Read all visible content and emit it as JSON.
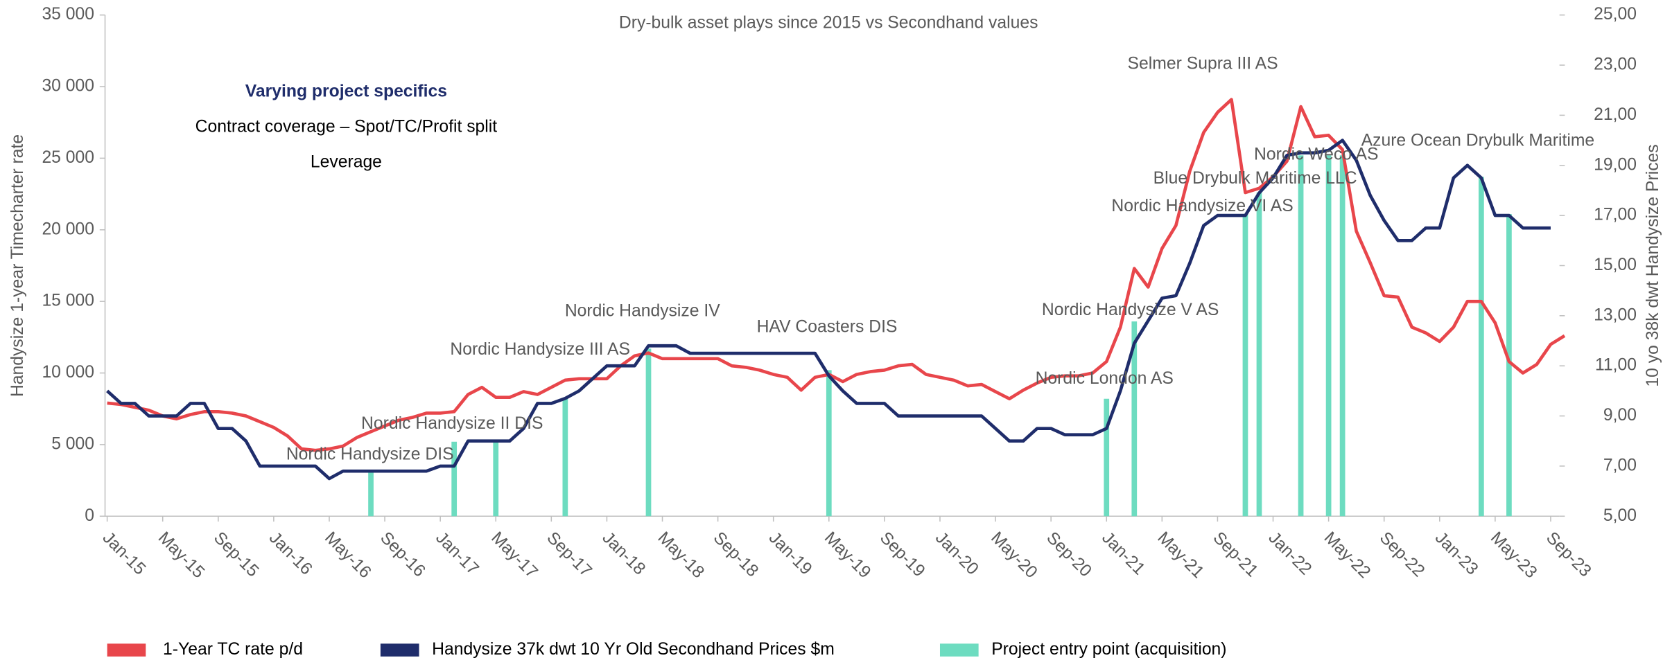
{
  "chart_data": {
    "type": "line",
    "title": "Dry-bulk asset plays since 2015 vs Secondhand values",
    "ylabel": "Handysize 1-year Timecharter rate",
    "y2label": "10 yo 38k dwt Handysize Prices",
    "notes": [
      "Varying project specifics",
      "Contract coverage – Spot/TC/Profit split",
      "Leverage"
    ],
    "annotations": [
      "Selmer Supra III AS",
      "Nordic Weco AS",
      "Azure Ocean Drybulk Maritime",
      "Blue Drybulk Maritime LLC",
      "Nordic Handysize VI AS",
      "Nordic Handysize V AS",
      "Nordic London AS",
      "HAV Coasters DIS",
      "Nordic Handysize IV",
      "Nordic Handysize III AS",
      "Nordic Handysize II DIS",
      "Nordic Handysize DIS"
    ],
    "categories": [
      "Jan-15",
      null,
      null,
      null,
      "May-15",
      null,
      null,
      null,
      "Sep-15",
      null,
      null,
      null,
      "Jan-16",
      null,
      null,
      null,
      "May-16",
      null,
      null,
      null,
      "Sep-16",
      null,
      null,
      null,
      "Jan-17",
      null,
      null,
      null,
      "May-17",
      null,
      null,
      null,
      "Sep-17",
      null,
      null,
      null,
      "Jan-18",
      null,
      null,
      null,
      "May-18",
      null,
      null,
      null,
      "Sep-18",
      null,
      null,
      null,
      "Jan-19",
      null,
      null,
      null,
      "May-19",
      null,
      null,
      null,
      "Sep-19",
      null,
      null,
      null,
      "Jan-20",
      null,
      null,
      null,
      "May-20",
      null,
      null,
      null,
      "Sep-20",
      null,
      null,
      null,
      "Jan-21",
      null,
      null,
      null,
      "May-21",
      null,
      null,
      null,
      "Sep-21",
      null,
      null,
      null,
      "Jan-22",
      null,
      null,
      null,
      "May-22",
      null,
      null,
      null,
      "Sep-22",
      null,
      null,
      null,
      "Jan-23",
      null,
      null,
      null,
      "May-23",
      null,
      null,
      null,
      "Sep-23",
      null
    ],
    "series": [
      {
        "name": "Project entry point (acquisition)",
        "type": "bar",
        "color": "#6ddcc0",
        "values": [
          null,
          null,
          null,
          null,
          null,
          null,
          null,
          null,
          null,
          null,
          null,
          null,
          null,
          null,
          null,
          null,
          null,
          null,
          null,
          3100,
          null,
          null,
          null,
          null,
          null,
          5200,
          null,
          null,
          5200,
          null,
          null,
          null,
          null,
          8200,
          null,
          null,
          null,
          null,
          null,
          11700,
          null,
          null,
          null,
          null,
          null,
          null,
          null,
          null,
          null,
          null,
          null,
          null,
          10200,
          null,
          null,
          null,
          null,
          null,
          null,
          null,
          null,
          null,
          null,
          null,
          null,
          null,
          null,
          null,
          null,
          null,
          null,
          null,
          8200,
          null,
          13600,
          null,
          null,
          null,
          null,
          null,
          null,
          null,
          21100,
          22600,
          null,
          null,
          25200,
          null,
          25200,
          25200,
          null,
          null,
          null,
          null,
          null,
          null,
          null,
          null,
          null,
          23700,
          null,
          21100,
          null,
          null,
          null,
          null
        ]
      },
      {
        "name": "1-Year TC rate p/d",
        "type": "line",
        "color": "#e8464b",
        "values": [
          7900,
          7800,
          7600,
          7400,
          7000,
          6800,
          7100,
          7300,
          7300,
          7200,
          7000,
          6600,
          6200,
          5600,
          4700,
          4600,
          4700,
          4900,
          5500,
          5900,
          6300,
          6700,
          6900,
          7200,
          7200,
          7300,
          8500,
          9000,
          8300,
          8300,
          8700,
          8500,
          9000,
          9500,
          9600,
          9600,
          9600,
          10500,
          11200,
          11400,
          11000,
          11000,
          11000,
          11000,
          11000,
          10500,
          10400,
          10200,
          9900,
          9700,
          8800,
          9700,
          9900,
          9400,
          9900,
          10100,
          10200,
          10500,
          10600,
          9900,
          9700,
          9500,
          9100,
          9200,
          8700,
          8200,
          8800,
          9300,
          9700,
          9800,
          9800,
          10000,
          10800,
          13200,
          17300,
          16000,
          18700,
          20300,
          24100,
          26800,
          28200,
          29100,
          22600,
          22900,
          23700,
          24800,
          28600,
          26500,
          26600,
          25600,
          19900,
          17700,
          15400,
          15300,
          13200,
          12800,
          12200,
          13200,
          15000,
          15000,
          13500,
          10800,
          10000,
          10600,
          12000,
          12600
        ]
      },
      {
        "name": "Handysize 37k dwt 10 Yr Old Secondhand Prices $m",
        "type": "line",
        "axis": "y2",
        "color": "#1f2d6b",
        "values": [
          10.0,
          9.5,
          9.5,
          9.0,
          9.0,
          9.0,
          9.5,
          9.5,
          8.5,
          8.5,
          8.0,
          7.0,
          7.0,
          7.0,
          7.0,
          7.0,
          6.5,
          6.8,
          6.8,
          6.8,
          6.8,
          6.8,
          6.8,
          6.8,
          7.0,
          7.0,
          8.0,
          8.0,
          8.0,
          8.0,
          8.5,
          9.5,
          9.5,
          9.7,
          10.0,
          10.5,
          11.0,
          11.0,
          11.0,
          11.8,
          11.8,
          11.8,
          11.5,
          11.5,
          11.5,
          11.5,
          11.5,
          11.5,
          11.5,
          11.5,
          11.5,
          11.5,
          10.6,
          10.0,
          9.5,
          9.5,
          9.5,
          9.0,
          9.0,
          9.0,
          9.0,
          9.0,
          9.0,
          9.0,
          8.5,
          8.0,
          8.0,
          8.5,
          8.5,
          8.25,
          8.25,
          8.25,
          8.5,
          10.0,
          11.9,
          12.8,
          13.7,
          13.8,
          15.1,
          16.6,
          17.0,
          17.0,
          17.0,
          17.9,
          18.5,
          19.4,
          19.5,
          19.5,
          19.6,
          20.0,
          19.2,
          17.8,
          16.8,
          16.0,
          16.0,
          16.5,
          16.5,
          18.5,
          19.0,
          18.5,
          17.0,
          17.0,
          16.5,
          16.5,
          16.5,
          null
        ]
      }
    ],
    "ylim": [
      0,
      35000
    ],
    "yticks": [
      0,
      {
        "value": 5000,
        "label": "5 000"
      },
      {
        "value": 10000,
        "label": "10 000"
      },
      {
        "value": 15000,
        "label": "15 000"
      },
      {
        "value": 20000,
        "label": "20 000"
      },
      {
        "value": 25000,
        "label": "25 000"
      },
      {
        "value": 30000,
        "label": "30 000"
      },
      {
        "value": 35000,
        "label": "35 000"
      }
    ],
    "y2lim": [
      5,
      25
    ],
    "y2ticks": [
      {
        "value": 5,
        "label": "5,00"
      },
      {
        "value": 7,
        "label": "7,00"
      },
      {
        "value": 9,
        "label": "9,00"
      },
      {
        "value": 11,
        "label": "11,00"
      },
      {
        "value": 13,
        "label": "13,00"
      },
      {
        "value": 15,
        "label": "15,00"
      },
      {
        "value": 17,
        "label": "17,00"
      },
      {
        "value": 19,
        "label": "19,00"
      },
      {
        "value": 21,
        "label": "21,00"
      },
      {
        "value": 23,
        "label": "23,00"
      },
      {
        "value": 25,
        "label": "25,00"
      }
    ],
    "legend": "bottom",
    "grid": false
  }
}
